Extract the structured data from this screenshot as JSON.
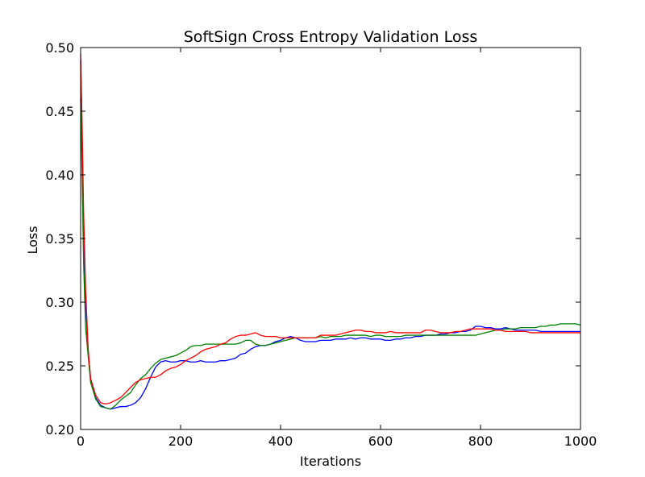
{
  "chart_data": {
    "type": "line",
    "title": "SoftSign Cross Entropy Validation Loss",
    "xlabel": "Iterations",
    "ylabel": "Loss",
    "xlim": [
      0,
      1000
    ],
    "ylim": [
      0.2,
      0.5
    ],
    "x_ticks": [
      0,
      200,
      400,
      600,
      800,
      1000
    ],
    "x_tick_labels": [
      "0",
      "200",
      "400",
      "600",
      "800",
      "1000"
    ],
    "y_ticks": [
      0.2,
      0.25,
      0.3,
      0.35,
      0.4,
      0.45,
      0.5
    ],
    "y_tick_labels": [
      "0.20",
      "0.25",
      "0.30",
      "0.35",
      "0.40",
      "0.45",
      "0.50"
    ],
    "grid": false,
    "series": [
      {
        "color": "#0000ff",
        "x": [
          0,
          3,
          6,
          10,
          15,
          20,
          30,
          40,
          50,
          60,
          70,
          80,
          90,
          100,
          110,
          120,
          130,
          140,
          150,
          160,
          170,
          180,
          190,
          200,
          210,
          220,
          230,
          240,
          250,
          260,
          270,
          280,
          290,
          300,
          310,
          320,
          330,
          340,
          350,
          360,
          370,
          380,
          390,
          400,
          410,
          420,
          430,
          440,
          450,
          460,
          470,
          480,
          490,
          500,
          510,
          520,
          530,
          540,
          550,
          560,
          570,
          580,
          590,
          600,
          610,
          620,
          630,
          640,
          650,
          660,
          670,
          680,
          690,
          700,
          710,
          720,
          730,
          740,
          750,
          760,
          770,
          780,
          790,
          800,
          810,
          820,
          830,
          840,
          850,
          860,
          870,
          880,
          890,
          900,
          910,
          920,
          930,
          940,
          950,
          960,
          970,
          980,
          990,
          1000
        ],
        "values": [
          0.49,
          0.43,
          0.36,
          0.3,
          0.262,
          0.24,
          0.225,
          0.219,
          0.217,
          0.216,
          0.217,
          0.218,
          0.218,
          0.219,
          0.221,
          0.225,
          0.232,
          0.241,
          0.249,
          0.253,
          0.254,
          0.253,
          0.253,
          0.254,
          0.254,
          0.253,
          0.253,
          0.254,
          0.253,
          0.253,
          0.253,
          0.254,
          0.254,
          0.255,
          0.256,
          0.259,
          0.26,
          0.263,
          0.265,
          0.266,
          0.266,
          0.267,
          0.269,
          0.27,
          0.272,
          0.273,
          0.272,
          0.27,
          0.269,
          0.269,
          0.269,
          0.27,
          0.27,
          0.27,
          0.271,
          0.271,
          0.271,
          0.272,
          0.271,
          0.272,
          0.272,
          0.271,
          0.271,
          0.271,
          0.27,
          0.27,
          0.271,
          0.271,
          0.272,
          0.272,
          0.273,
          0.273,
          0.274,
          0.274,
          0.274,
          0.275,
          0.275,
          0.276,
          0.276,
          0.277,
          0.277,
          0.278,
          0.281,
          0.281,
          0.28,
          0.28,
          0.279,
          0.279,
          0.28,
          0.279,
          0.278,
          0.278,
          0.278,
          0.278,
          0.278,
          0.277,
          0.277,
          0.277,
          0.277,
          0.277,
          0.277,
          0.277,
          0.277,
          0.277
        ]
      },
      {
        "color": "#008000",
        "x": [
          0,
          3,
          6,
          10,
          15,
          20,
          30,
          40,
          50,
          60,
          70,
          80,
          90,
          100,
          110,
          120,
          130,
          140,
          150,
          160,
          170,
          180,
          190,
          200,
          210,
          220,
          230,
          240,
          250,
          260,
          270,
          280,
          290,
          300,
          310,
          320,
          330,
          340,
          350,
          360,
          370,
          380,
          390,
          400,
          410,
          420,
          430,
          440,
          450,
          460,
          470,
          480,
          490,
          500,
          510,
          520,
          530,
          540,
          550,
          560,
          570,
          580,
          590,
          600,
          610,
          620,
          630,
          640,
          650,
          660,
          670,
          680,
          690,
          700,
          710,
          720,
          730,
          740,
          750,
          760,
          770,
          780,
          790,
          800,
          810,
          820,
          830,
          840,
          850,
          860,
          870,
          880,
          890,
          900,
          910,
          920,
          930,
          940,
          950,
          960,
          970,
          980,
          990,
          1000
        ],
        "values": [
          0.46,
          0.4,
          0.33,
          0.28,
          0.258,
          0.237,
          0.224,
          0.218,
          0.217,
          0.216,
          0.219,
          0.223,
          0.226,
          0.229,
          0.235,
          0.24,
          0.243,
          0.248,
          0.252,
          0.255,
          0.256,
          0.257,
          0.258,
          0.26,
          0.262,
          0.265,
          0.266,
          0.266,
          0.267,
          0.267,
          0.267,
          0.267,
          0.267,
          0.267,
          0.267,
          0.268,
          0.27,
          0.27,
          0.267,
          0.266,
          0.266,
          0.267,
          0.268,
          0.269,
          0.27,
          0.271,
          0.272,
          0.272,
          0.272,
          0.272,
          0.272,
          0.273,
          0.272,
          0.273,
          0.273,
          0.273,
          0.274,
          0.274,
          0.274,
          0.274,
          0.274,
          0.273,
          0.274,
          0.274,
          0.273,
          0.273,
          0.273,
          0.273,
          0.274,
          0.274,
          0.274,
          0.274,
          0.274,
          0.274,
          0.274,
          0.274,
          0.274,
          0.274,
          0.274,
          0.274,
          0.274,
          0.274,
          0.274,
          0.275,
          0.276,
          0.277,
          0.278,
          0.278,
          0.279,
          0.279,
          0.279,
          0.28,
          0.28,
          0.28,
          0.28,
          0.281,
          0.281,
          0.282,
          0.282,
          0.283,
          0.283,
          0.283,
          0.283,
          0.282
        ]
      },
      {
        "color": "#ff0000",
        "x": [
          0,
          3,
          6,
          10,
          15,
          20,
          30,
          40,
          50,
          60,
          70,
          80,
          90,
          100,
          110,
          120,
          130,
          140,
          150,
          160,
          170,
          180,
          190,
          200,
          210,
          220,
          230,
          240,
          250,
          260,
          270,
          280,
          290,
          300,
          310,
          320,
          330,
          340,
          350,
          360,
          370,
          380,
          390,
          400,
          410,
          420,
          430,
          440,
          450,
          460,
          470,
          480,
          490,
          500,
          510,
          520,
          530,
          540,
          550,
          560,
          570,
          580,
          590,
          600,
          610,
          620,
          630,
          640,
          650,
          660,
          670,
          680,
          690,
          700,
          710,
          720,
          730,
          740,
          750,
          760,
          770,
          780,
          790,
          800,
          810,
          820,
          830,
          840,
          850,
          860,
          870,
          880,
          890,
          900,
          910,
          920,
          930,
          940,
          950,
          960,
          970,
          980,
          990,
          1000
        ],
        "values": [
          0.495,
          0.44,
          0.37,
          0.31,
          0.264,
          0.24,
          0.227,
          0.221,
          0.22,
          0.221,
          0.223,
          0.225,
          0.229,
          0.233,
          0.237,
          0.239,
          0.24,
          0.241,
          0.241,
          0.243,
          0.246,
          0.248,
          0.249,
          0.251,
          0.254,
          0.256,
          0.258,
          0.261,
          0.263,
          0.264,
          0.265,
          0.267,
          0.268,
          0.271,
          0.273,
          0.274,
          0.274,
          0.275,
          0.276,
          0.274,
          0.273,
          0.273,
          0.273,
          0.272,
          0.272,
          0.272,
          0.272,
          0.272,
          0.272,
          0.272,
          0.272,
          0.274,
          0.274,
          0.274,
          0.274,
          0.275,
          0.276,
          0.277,
          0.278,
          0.278,
          0.277,
          0.277,
          0.276,
          0.276,
          0.276,
          0.277,
          0.276,
          0.276,
          0.276,
          0.276,
          0.276,
          0.276,
          0.278,
          0.278,
          0.277,
          0.276,
          0.276,
          0.276,
          0.277,
          0.277,
          0.278,
          0.279,
          0.279,
          0.279,
          0.279,
          0.279,
          0.278,
          0.278,
          0.277,
          0.277,
          0.277,
          0.277,
          0.277,
          0.276,
          0.276,
          0.276,
          0.276,
          0.276,
          0.276,
          0.276,
          0.276,
          0.276,
          0.276,
          0.276
        ]
      }
    ]
  }
}
